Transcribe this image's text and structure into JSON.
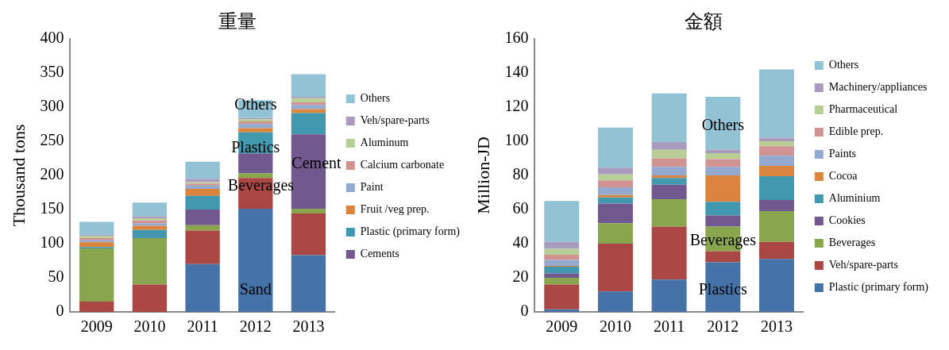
{
  "chart_data": [
    {
      "type": "bar",
      "title": "重量",
      "ylabel": "Thousand tons",
      "stacked": true,
      "legend": "right",
      "grid": false,
      "categories": [
        "2009",
        "2010",
        "2011",
        "2012",
        "2013"
      ],
      "ylim": [
        0,
        400
      ],
      "yticks": [
        0,
        50,
        100,
        150,
        200,
        250,
        300,
        350,
        400
      ],
      "series": [
        {
          "color": "#4572a7",
          "values": [
            0,
            0,
            70,
            151,
            83
          ]
        },
        {
          "color": "#aa4643",
          "values": [
            15,
            40,
            49,
            45,
            61
          ]
        },
        {
          "color": "#89a54e",
          "values": [
            78,
            68,
            8,
            7,
            7
          ]
        },
        {
          "name": "Cements",
          "color": "#71588f",
          "values": [
            0,
            0,
            23,
            29,
            109
          ]
        },
        {
          "name": "Plastic (primary form)",
          "color": "#4198af",
          "values": [
            2,
            12,
            20,
            31,
            31
          ]
        },
        {
          "name": "Fruit /veg prep.",
          "color": "#db843d",
          "values": [
            7,
            6,
            10,
            6,
            6
          ]
        },
        {
          "name": "Paint",
          "color": "#93a9cf",
          "values": [
            3,
            4,
            5,
            6,
            6
          ]
        },
        {
          "name": "Calcium carbonate",
          "color": "#d19392",
          "values": [
            3,
            4,
            3,
            4,
            4
          ]
        },
        {
          "name": "Aluminum",
          "color": "#b9cd96",
          "values": [
            3,
            3,
            2,
            3,
            6
          ]
        },
        {
          "name": "Veh/spare-parts",
          "color": "#a99bbd",
          "values": [
            2,
            3,
            5,
            2,
            2
          ]
        },
        {
          "name": "Others",
          "color": "#92c3d4",
          "values": [
            19,
            20,
            25,
            26,
            33
          ]
        }
      ],
      "annotations": [
        "Sand",
        "Beverages",
        "Plastics",
        "Others",
        "Cement"
      ]
    },
    {
      "type": "bar",
      "title": "金額",
      "ylabel": "Million-JD",
      "stacked": true,
      "legend": "right",
      "grid": false,
      "categories": [
        "2009",
        "2010",
        "2011",
        "2012",
        "2013"
      ],
      "ylim": [
        0,
        160
      ],
      "yticks": [
        0,
        20,
        40,
        60,
        80,
        100,
        120,
        140,
        160
      ],
      "series": [
        {
          "name": "Plastic (primary form)",
          "color": "#4572a7",
          "values": [
            1.5,
            12,
            19,
            29,
            31
          ]
        },
        {
          "name": "Veh/spare-parts",
          "color": "#aa4643",
          "values": [
            14.5,
            28,
            31,
            6.5,
            10
          ]
        },
        {
          "name": "Beverages",
          "color": "#89a54e",
          "values": [
            4,
            12,
            16,
            14.5,
            18
          ]
        },
        {
          "name": "Cookies",
          "color": "#71588f",
          "values": [
            2.5,
            11.5,
            8.5,
            6.5,
            6.5
          ]
        },
        {
          "name": "Aluminium",
          "color": "#4198af",
          "values": [
            4,
            3.5,
            4,
            8,
            14
          ]
        },
        {
          "name": "Cocoa",
          "color": "#db843d",
          "values": [
            0.5,
            1.5,
            1.5,
            15.5,
            6
          ]
        },
        {
          "name": "Paints",
          "color": "#93a9cf",
          "values": [
            3.5,
            4.5,
            5,
            5,
            6
          ]
        },
        {
          "name": "Edible prep.",
          "color": "#d19392",
          "values": [
            3,
            4,
            5,
            4.5,
            5.5
          ]
        },
        {
          "name": "Pharmaceutical",
          "color": "#b9cd96",
          "values": [
            3.5,
            3.5,
            5,
            3.5,
            3
          ]
        },
        {
          "name": "Machinery/appliances",
          "color": "#a99bbd",
          "values": [
            4,
            4,
            4.5,
            2,
            2
          ]
        },
        {
          "name": "Others",
          "color": "#92c3d4",
          "values": [
            24,
            23.5,
            28.5,
            31,
            40
          ]
        }
      ],
      "annotations": [
        "Plastics",
        "Beverages",
        "Others"
      ]
    }
  ]
}
